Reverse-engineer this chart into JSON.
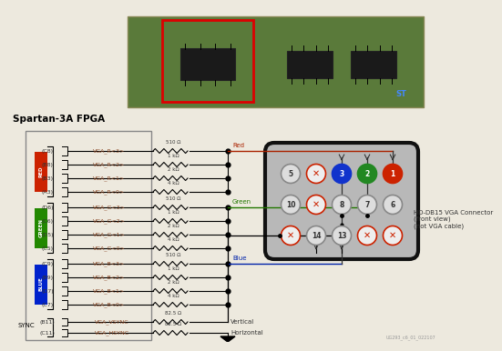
{
  "bg_color": "#ede9de",
  "title_text": "Spartan-3A FPGA",
  "red_signals": [
    {
      "pin": "C8",
      "name": "VGA_R<3>",
      "res": "510 Ω"
    },
    {
      "pin": "B8",
      "name": "VGA_R<2>",
      "res": "1 kΩ"
    },
    {
      "pin": "B3",
      "name": "VGA_R<1>",
      "res": "2 kΩ"
    },
    {
      "pin": "A3",
      "name": "VGA_R<0>",
      "res": "4 kΩ"
    }
  ],
  "green_signals": [
    {
      "pin": "D6",
      "name": "VGA_G<3>",
      "res": "510 Ω"
    },
    {
      "pin": "C6",
      "name": "VGA_G<2>",
      "res": "1 kΩ"
    },
    {
      "pin": "D5",
      "name": "VGA_G<1>",
      "res": "2 kΩ"
    },
    {
      "pin": "C5",
      "name": "VGA_G<0>",
      "res": "4 kΩ"
    }
  ],
  "blue_signals": [
    {
      "pin": "C9",
      "name": "VGA_B<3>",
      "res": "510 Ω"
    },
    {
      "pin": "B9",
      "name": "VGA_B<2>",
      "res": "1 kΩ"
    },
    {
      "pin": "D7",
      "name": "VGA_B<1>",
      "res": "2 kΩ"
    },
    {
      "pin": "C7",
      "name": "VGA_B<0>",
      "res": "4 kΩ"
    }
  ],
  "sync_signals": [
    {
      "pin": "B11",
      "name": "VGA_VSYNC",
      "res": "82.5 Ω",
      "label": "Vertical"
    },
    {
      "pin": "C11",
      "name": "VGA_HSYNC",
      "res": "82.5 Ω",
      "label": "Horizontal"
    }
  ],
  "color_labels": [
    "RED",
    "GREEN",
    "BLUE"
  ],
  "color_hex": [
    "#cc2200",
    "#228800",
    "#0022cc"
  ],
  "connector_label": "HD-DB15 VGA Connector\n(front view)\n(not VGA cable)",
  "wire_red": "#aa2200",
  "wire_green": "#227700",
  "wire_blue": "#0022aa",
  "watermark": "UG293_c6_01_022107"
}
